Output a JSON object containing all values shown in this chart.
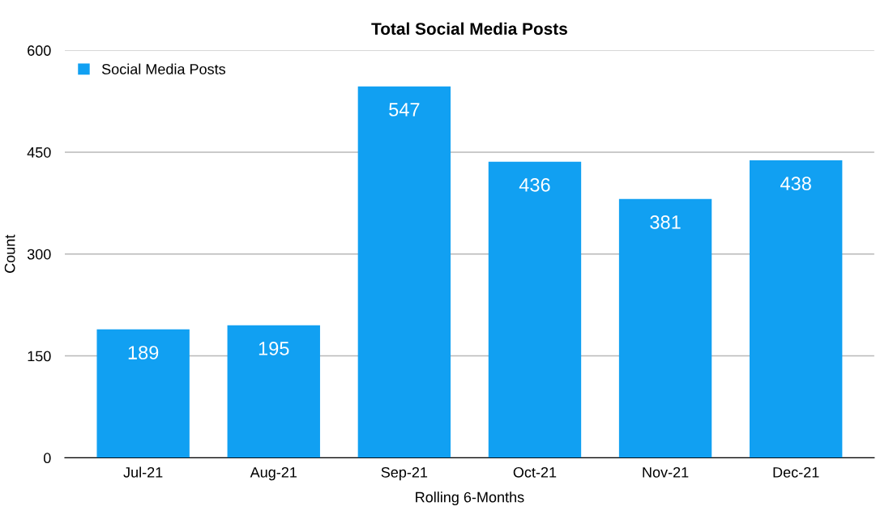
{
  "chart_data": {
    "type": "bar",
    "title": "Total Social Media Posts",
    "xlabel": "Rolling 6-Months",
    "ylabel": "Count",
    "categories": [
      "Jul-21",
      "Aug-21",
      "Sep-21",
      "Oct-21",
      "Nov-21",
      "Dec-21"
    ],
    "series": [
      {
        "name": "Social Media Posts",
        "color": "#11a0f2",
        "values": [
          189,
          195,
          547,
          436,
          381,
          438
        ]
      }
    ],
    "ylim": [
      0,
      600
    ],
    "yticks": [
      0,
      150,
      300,
      450,
      600
    ],
    "grid": "y",
    "legend": "top left",
    "data_labels": true
  }
}
